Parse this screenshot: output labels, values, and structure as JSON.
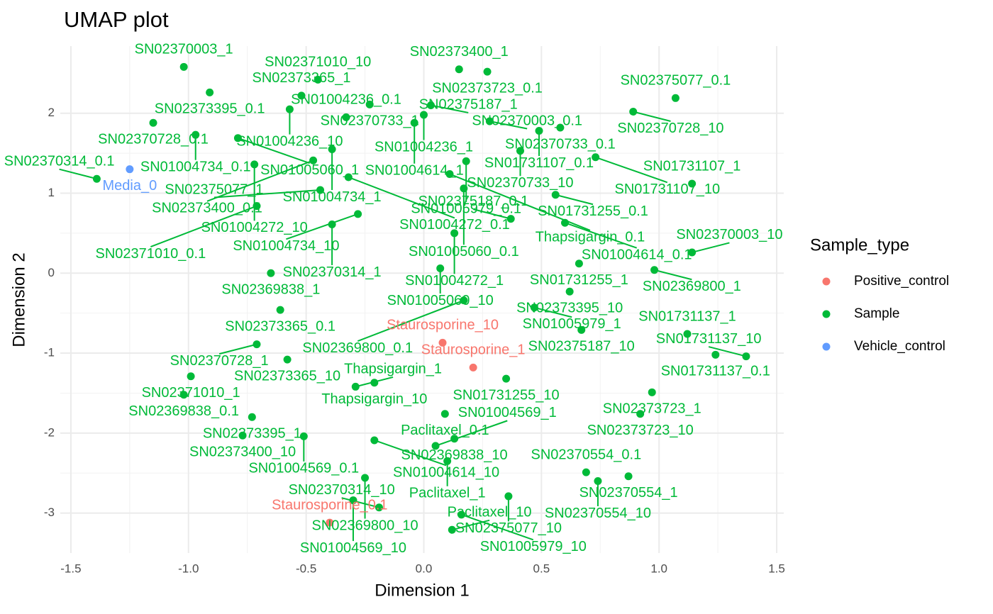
{
  "chart_data": {
    "type": "scatter",
    "title": "UMAP plot",
    "x_label": "Dimension 1",
    "y_label": "Dimension 2",
    "legend_title": "Sample_type",
    "legend": "right",
    "grid": true,
    "xlim": [
      -1.545,
      1.53
    ],
    "ylim": [
      -3.5,
      2.84
    ],
    "xticks": [
      -1.5,
      {
        "value": -1.0,
        "label": "-1.0"
      },
      -0.5,
      {
        "value": 0.0,
        "label": "0.0"
      },
      0.5,
      {
        "value": 1.0,
        "label": "1.0"
      },
      1.5
    ],
    "yticks": [
      -3,
      -2,
      -1,
      0,
      1,
      2
    ],
    "series": [
      {
        "name": "Positive_control",
        "color": "#F8766D",
        "x": [
          0.08,
          0.21,
          -0.4
        ],
        "y": [
          -0.87,
          -1.18,
          -3.12
        ],
        "labels": [
          "Staurosporine_10",
          "Staurosporine_1",
          "Staurosporine_0.1"
        ]
      },
      {
        "name": "Sample",
        "color": "#00BA38",
        "x": [
          -1.02,
          -0.45,
          0.15,
          0.27,
          1.07,
          -0.91,
          -0.52,
          -0.23,
          0.03,
          0.0,
          0.28,
          0.89,
          0.58,
          0.49,
          -0.04,
          -1.15,
          -0.57,
          -0.33,
          -0.97,
          -0.79,
          -0.39,
          0.41,
          0.73,
          1.14,
          0.18,
          0.56,
          -0.47,
          -0.72,
          -0.32,
          0.11,
          -0.44,
          0.17,
          -1.39,
          -0.28,
          -0.71,
          -0.39,
          0.13,
          0.6,
          1.14,
          0.07,
          0.66,
          0.98,
          -0.65,
          0.62,
          0.17,
          0.47,
          -0.61,
          0.37,
          0.67,
          1.12,
          -0.71,
          1.37,
          1.24,
          -0.58,
          -0.21,
          0.35,
          -0.99,
          -0.29,
          0.97,
          -1.02,
          0.09,
          0.92,
          -0.73,
          -0.77,
          -0.51,
          -0.21,
          0.13,
          0.05,
          0.1,
          0.69,
          0.87,
          0.74,
          -0.25,
          0.36,
          -0.3,
          -0.19,
          0.16,
          0.12
        ],
        "y": [
          2.58,
          2.42,
          2.55,
          2.52,
          2.19,
          2.26,
          2.22,
          2.11,
          2.1,
          1.98,
          1.9,
          2.02,
          1.82,
          1.78,
          1.88,
          1.88,
          2.05,
          1.95,
          1.73,
          1.69,
          1.55,
          1.53,
          1.45,
          1.12,
          1.4,
          0.98,
          1.41,
          1.36,
          1.2,
          1.24,
          1.04,
          1.06,
          1.18,
          0.74,
          0.84,
          0.61,
          0.5,
          0.63,
          0.26,
          0.06,
          0.12,
          0.04,
          0.0,
          -0.23,
          -0.34,
          -0.43,
          -0.46,
          0.68,
          -0.71,
          -0.76,
          -0.89,
          -1.04,
          -1.02,
          -1.08,
          -1.37,
          -1.32,
          -1.29,
          -1.42,
          -1.49,
          -1.52,
          -1.76,
          -1.76,
          -1.8,
          -2.03,
          -2.04,
          -2.09,
          -2.07,
          -2.16,
          -2.35,
          -2.49,
          -2.54,
          -2.6,
          -2.56,
          -2.79,
          -2.84,
          -2.93,
          -3.02,
          -3.21
        ],
        "labels": [
          "SN02370003_1",
          "SN02371010_10",
          "SN02373400_1",
          "SN02373723_0.1",
          "SN02375077_0.1",
          "SN02373395_0.1",
          "SN02373365_1",
          "SN02370733_1",
          "SN02375187_1",
          "SN01004236_1",
          "SN02370003_0.1",
          "SN02370728_10",
          "SN02370733_0.1",
          "SN01731107_0.1",
          "SN01004614_1",
          "SN02370728_0.1",
          "SN01004236_10",
          "SN01004236_0.1",
          "SN01004734_0.1",
          "SN01005060_1",
          "SN01004734_1",
          "SN02370733_10",
          "SN01731107_10",
          "SN01731107_1",
          "SN01005979_0.1",
          "SN01731255_0.1",
          "SN02373400_0.1",
          "SN01004272_10",
          "SN01004272_0.1",
          "Thapsigargin_0.1",
          "SN02375077_1",
          "SN01005060_0.1",
          "SN02370314_0.1",
          "SN01004734_10",
          "SN02371010_0.1",
          "SN02370314_1",
          "SN01004272_1",
          "SN01004614_0.1",
          "SN02370003_10",
          "SN01005060_10",
          "SN01731255_1",
          "SN02369800_1",
          "SN02369838_1",
          "SN02373395_10",
          "SN02369800_0.1",
          "SN01005979_1",
          "SN02373365_0.1",
          "SN02375187_0.1",
          "SN02375187_10",
          "SN01731137_1",
          "SN02370728_1",
          "SN01731137_10",
          "SN01731137_0.1",
          "SN02373365_10",
          "Thapsigargin_10",
          "SN01731255_10",
          "SN02371010_1",
          "Thapsigargin_1",
          "SN02373723_1",
          "SN02369838_0.1",
          "Paclitaxel_0.1",
          "SN02373723_10",
          "SN02373395_1",
          "SN02373400_10",
          "SN01004569_0.1",
          "SN01004614_10",
          "SN02369838_10",
          "SN01004569_1",
          "Paclitaxel_1",
          "SN02370554_0.1",
          "SN02370554_1",
          "SN02370554_10",
          "SN02369800_10",
          "SN02375077_10",
          "SN01004569_10",
          "SN02370314_10",
          "SN01005979_10",
          "Paclitaxel_10"
        ]
      },
      {
        "name": "Vehicle_control",
        "color": "#619CFF",
        "x": [
          -1.25
        ],
        "y": [
          1.3
        ],
        "labels": [
          "Media_0"
        ]
      }
    ]
  }
}
